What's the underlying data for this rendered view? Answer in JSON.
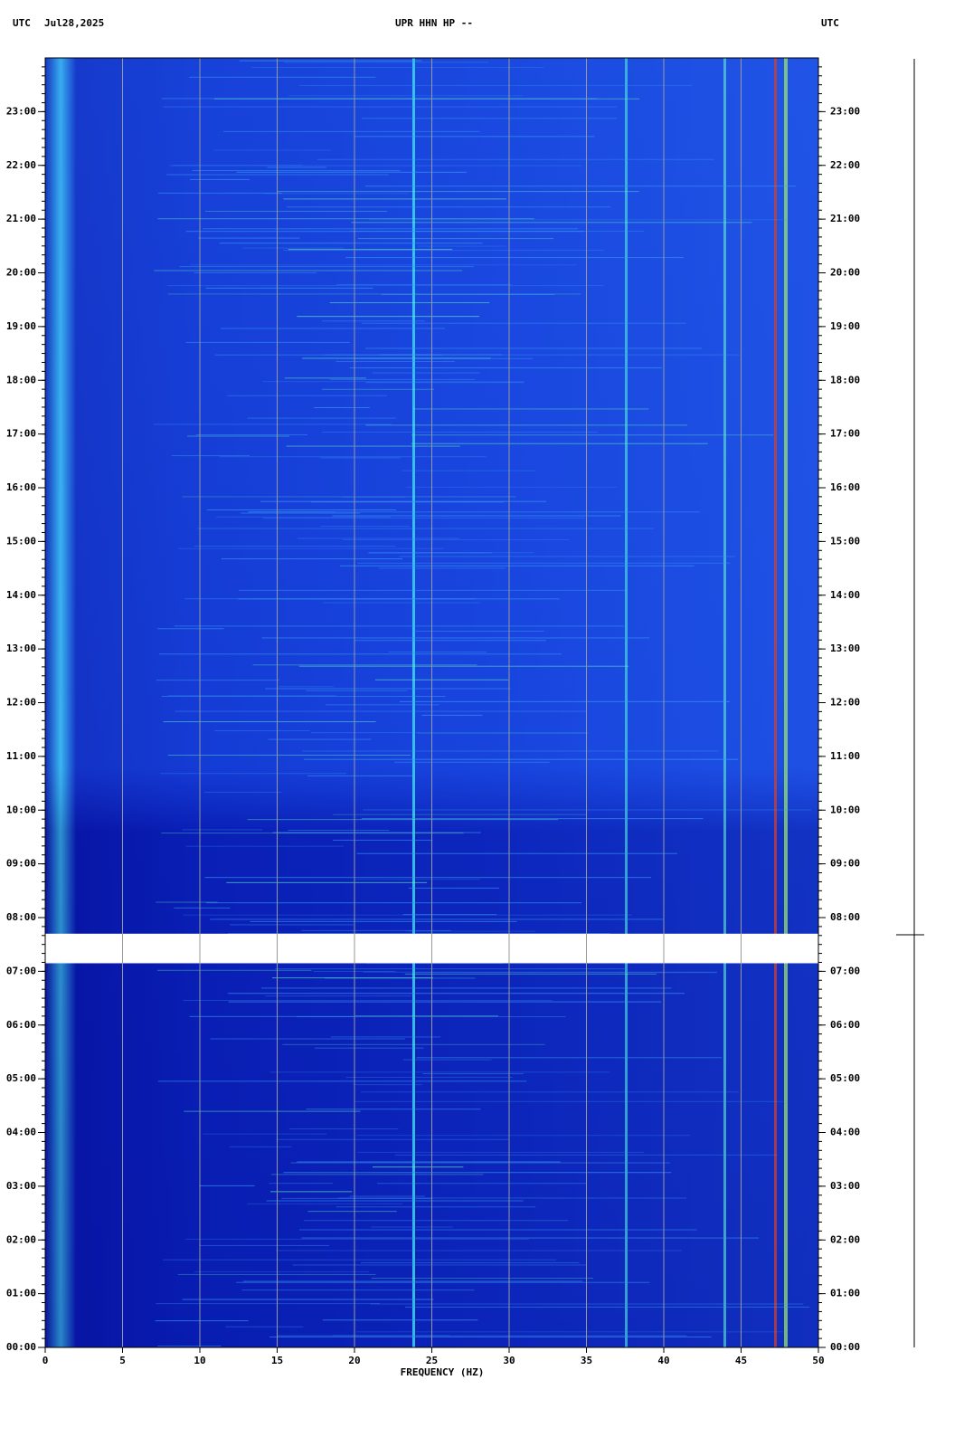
{
  "chart_data": {
    "type": "spectrogram",
    "station": "UPR HHN HP --",
    "left_label": "UTC",
    "date": "Jul28,2025",
    "right_label": "UTC",
    "x_label": "FREQUENCY (HZ)",
    "xlim": [
      0,
      50
    ],
    "xticks": [
      0,
      5,
      10,
      15,
      20,
      25,
      30,
      35,
      40,
      45,
      50
    ],
    "ylim": [
      0,
      24
    ],
    "yticks": [
      {
        "value": 0,
        "label": "00:00"
      },
      {
        "value": 1,
        "label": "01:00"
      },
      {
        "value": 2,
        "label": "02:00"
      },
      {
        "value": 3,
        "label": "03:00"
      },
      {
        "value": 4,
        "label": "04:00"
      },
      {
        "value": 5,
        "label": "05:00"
      },
      {
        "value": 6,
        "label": "06:00"
      },
      {
        "value": 7,
        "label": "07:00"
      },
      {
        "value": 8,
        "label": "08:00"
      },
      {
        "value": 9,
        "label": "09:00"
      },
      {
        "value": 10,
        "label": "10:00"
      },
      {
        "value": 11,
        "label": "11:00"
      },
      {
        "value": 12,
        "label": "12:00"
      },
      {
        "value": 13,
        "label": "13:00"
      },
      {
        "value": 14,
        "label": "14:00"
      },
      {
        "value": 15,
        "label": "15:00"
      },
      {
        "value": 16,
        "label": "16:00"
      },
      {
        "value": 17,
        "label": "17:00"
      },
      {
        "value": 18,
        "label": "18:00"
      },
      {
        "value": 19,
        "label": "19:00"
      },
      {
        "value": 20,
        "label": "20:00"
      },
      {
        "value": 21,
        "label": "21:00"
      },
      {
        "value": 22,
        "label": "22:00"
      },
      {
        "value": 23,
        "label": "23:00"
      }
    ],
    "data_gap": [
      7.15,
      7.7
    ],
    "grid": true
  }
}
